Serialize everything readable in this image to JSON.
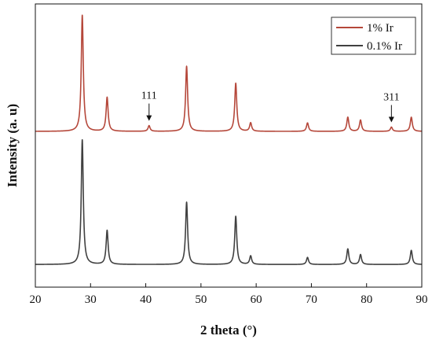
{
  "chart_data": {
    "type": "line",
    "title": "",
    "xlabel": "2 theta (°)",
    "ylabel": "Intensity (a. u)",
    "xlim": [
      20,
      90
    ],
    "xticks": [
      20,
      30,
      40,
      50,
      60,
      70,
      80,
      90
    ],
    "y_ticks_shown": false,
    "grid": false,
    "legend_position": "top-right",
    "series": [
      {
        "name": "1% Ir",
        "color": "#b5473a",
        "baseline": 0.55,
        "peaks": [
          {
            "x": 28.5,
            "h": 0.41
          },
          {
            "x": 33.0,
            "h": 0.12
          },
          {
            "x": 40.6,
            "h": 0.02
          },
          {
            "x": 47.4,
            "h": 0.23
          },
          {
            "x": 56.3,
            "h": 0.17
          },
          {
            "x": 59.0,
            "h": 0.03
          },
          {
            "x": 69.3,
            "h": 0.03
          },
          {
            "x": 76.6,
            "h": 0.05
          },
          {
            "x": 78.9,
            "h": 0.04
          },
          {
            "x": 84.5,
            "h": 0.015
          },
          {
            "x": 88.1,
            "h": 0.05
          }
        ]
      },
      {
        "name": "0.1% Ir",
        "color": "#404040",
        "baseline": 0.08,
        "peaks": [
          {
            "x": 28.5,
            "h": 0.44
          },
          {
            "x": 33.0,
            "h": 0.12
          },
          {
            "x": 47.4,
            "h": 0.22
          },
          {
            "x": 56.3,
            "h": 0.17
          },
          {
            "x": 59.0,
            "h": 0.03
          },
          {
            "x": 69.3,
            "h": 0.025
          },
          {
            "x": 76.6,
            "h": 0.055
          },
          {
            "x": 78.9,
            "h": 0.035
          },
          {
            "x": 88.1,
            "h": 0.05
          }
        ]
      }
    ],
    "annotations": [
      {
        "text": "111",
        "x": 40.6,
        "series": 0
      },
      {
        "text": "311",
        "x": 84.5,
        "series": 0
      }
    ]
  }
}
